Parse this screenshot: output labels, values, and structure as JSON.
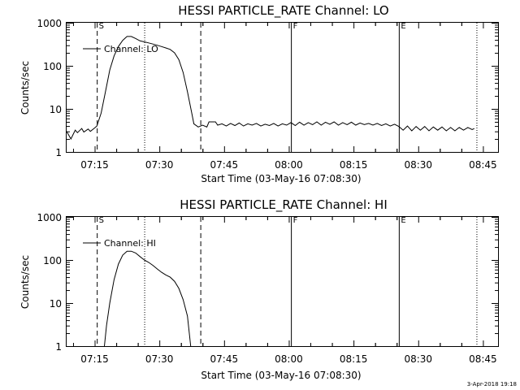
{
  "figure": {
    "footer_timestamp": "3-Apr-2018 19:18"
  },
  "chart_data": [
    {
      "type": "line",
      "title": "HESSI PARTICLE_RATE Channel: LO",
      "xlabel": "Start Time (03-May-16 07:08:30)",
      "ylabel": "Counts/sec",
      "y_scale": "log",
      "ylim": [
        1,
        1000
      ],
      "xlim": [
        "07:08:30",
        "08:48:30"
      ],
      "x_ticks": [
        "07:15",
        "07:30",
        "07:45",
        "08:00",
        "08:15",
        "08:30",
        "08:45"
      ],
      "y_ticks": [
        "1",
        "10",
        "100",
        "1000"
      ],
      "legend": {
        "placement": "top-left",
        "entries": [
          "Channel: LO"
        ]
      },
      "grid": false,
      "markers": [
        {
          "time": "07:15:30",
          "label": "S",
          "style": "dashed"
        },
        {
          "time": "07:26:30",
          "label": "",
          "style": "dotted"
        },
        {
          "time": "07:39:30",
          "label": "",
          "style": "dashed"
        },
        {
          "time": "08:00:30",
          "label": "F",
          "style": "solid"
        },
        {
          "time": "08:25:30",
          "label": "E",
          "style": "solid"
        },
        {
          "time": "08:43:30",
          "label": "",
          "style": "dotted"
        }
      ],
      "series": [
        {
          "name": "Channel: LO",
          "points": [
            [
              "07:08:30",
              3.0
            ],
            [
              "07:09:30",
              2.0
            ],
            [
              "07:10:30",
              3.2
            ],
            [
              "07:11:00",
              2.8
            ],
            [
              "07:12:00",
              3.5
            ],
            [
              "07:12:30",
              2.9
            ],
            [
              "07:13:30",
              3.4
            ],
            [
              "07:14:00",
              3.0
            ],
            [
              "07:15:00",
              3.6
            ],
            [
              "07:15:30",
              4.0
            ],
            [
              "07:16:30",
              8.0
            ],
            [
              "07:17:30",
              25
            ],
            [
              "07:18:30",
              80
            ],
            [
              "07:19:30",
              170
            ],
            [
              "07:20:30",
              280
            ],
            [
              "07:21:30",
              390
            ],
            [
              "07:22:30",
              480
            ],
            [
              "07:23:30",
              480
            ],
            [
              "07:24:30",
              430
            ],
            [
              "07:25:30",
              380
            ],
            [
              "07:26:30",
              360
            ],
            [
              "07:27:30",
              340
            ],
            [
              "07:28:30",
              320
            ],
            [
              "07:29:30",
              300
            ],
            [
              "07:30:30",
              280
            ],
            [
              "07:31:30",
              260
            ],
            [
              "07:32:30",
              240
            ],
            [
              "07:33:30",
              200
            ],
            [
              "07:34:30",
              140
            ],
            [
              "07:35:30",
              70
            ],
            [
              "07:36:30",
              25
            ],
            [
              "07:37:30",
              8.0
            ],
            [
              "07:38:00",
              4.5
            ],
            [
              "07:39:00",
              3.8
            ],
            [
              "07:40:00",
              4.2
            ],
            [
              "07:41:00",
              3.8
            ],
            [
              "07:41:30",
              5.0
            ],
            [
              "07:43:00",
              5.0
            ],
            [
              "07:43:30",
              4.2
            ],
            [
              "07:44:30",
              4.5
            ],
            [
              "07:45:30",
              4.0
            ],
            [
              "07:46:30",
              4.6
            ],
            [
              "07:47:30",
              4.1
            ],
            [
              "07:48:30",
              4.7
            ],
            [
              "07:49:30",
              4.0
            ],
            [
              "07:50:30",
              4.5
            ],
            [
              "07:51:30",
              4.2
            ],
            [
              "07:52:30",
              4.6
            ],
            [
              "07:53:30",
              4.0
            ],
            [
              "07:54:30",
              4.4
            ],
            [
              "07:55:30",
              4.1
            ],
            [
              "07:56:30",
              4.6
            ],
            [
              "07:57:30",
              4.0
            ],
            [
              "07:58:30",
              4.5
            ],
            [
              "07:59:30",
              4.2
            ],
            [
              "08:00:30",
              4.8
            ],
            [
              "08:01:30",
              4.1
            ],
            [
              "08:02:30",
              4.9
            ],
            [
              "08:03:30",
              4.2
            ],
            [
              "08:04:30",
              4.8
            ],
            [
              "08:05:30",
              4.3
            ],
            [
              "08:06:30",
              5.0
            ],
            [
              "08:07:30",
              4.2
            ],
            [
              "08:08:30",
              4.9
            ],
            [
              "08:09:30",
              4.4
            ],
            [
              "08:10:30",
              5.0
            ],
            [
              "08:11:30",
              4.2
            ],
            [
              "08:12:30",
              4.8
            ],
            [
              "08:13:30",
              4.3
            ],
            [
              "08:14:30",
              4.9
            ],
            [
              "08:15:30",
              4.2
            ],
            [
              "08:16:30",
              4.7
            ],
            [
              "08:17:30",
              4.3
            ],
            [
              "08:18:30",
              4.6
            ],
            [
              "08:19:30",
              4.2
            ],
            [
              "08:20:30",
              4.6
            ],
            [
              "08:21:30",
              4.1
            ],
            [
              "08:22:30",
              4.5
            ],
            [
              "08:23:30",
              4.0
            ],
            [
              "08:24:30",
              4.4
            ],
            [
              "08:25:30",
              3.9
            ],
            [
              "08:26:30",
              3.2
            ],
            [
              "08:27:30",
              4.0
            ],
            [
              "08:28:30",
              3.1
            ],
            [
              "08:29:30",
              3.9
            ],
            [
              "08:30:30",
              3.2
            ],
            [
              "08:31:30",
              3.9
            ],
            [
              "08:32:30",
              3.1
            ],
            [
              "08:33:30",
              3.8
            ],
            [
              "08:34:30",
              3.2
            ],
            [
              "08:35:30",
              3.8
            ],
            [
              "08:36:30",
              3.1
            ],
            [
              "08:37:30",
              3.7
            ],
            [
              "08:38:30",
              3.1
            ],
            [
              "08:39:30",
              3.7
            ],
            [
              "08:40:30",
              3.2
            ],
            [
              "08:41:30",
              3.7
            ],
            [
              "08:42:30",
              3.3
            ],
            [
              "08:43:00",
              3.5
            ]
          ]
        }
      ]
    },
    {
      "type": "line",
      "title": "HESSI PARTICLE_RATE Channel: HI",
      "xlabel": "Start Time (03-May-16 07:08:30)",
      "ylabel": "Counts/sec",
      "y_scale": "log",
      "ylim": [
        1,
        1000
      ],
      "xlim": [
        "07:08:30",
        "08:48:30"
      ],
      "x_ticks": [
        "07:15",
        "07:30",
        "07:45",
        "08:00",
        "08:15",
        "08:30",
        "08:45"
      ],
      "y_ticks": [
        "1",
        "10",
        "100",
        "1000"
      ],
      "legend": {
        "placement": "top-left",
        "entries": [
          "Channel: HI"
        ]
      },
      "grid": false,
      "markers": [
        {
          "time": "07:15:30",
          "label": "S",
          "style": "dashed"
        },
        {
          "time": "07:26:30",
          "label": "",
          "style": "dotted"
        },
        {
          "time": "07:39:30",
          "label": "",
          "style": "dashed"
        },
        {
          "time": "08:00:30",
          "label": "F",
          "style": "solid"
        },
        {
          "time": "08:25:30",
          "label": "E",
          "style": "solid"
        },
        {
          "time": "08:43:30",
          "label": "",
          "style": "dotted"
        }
      ],
      "series": [
        {
          "name": "Channel: HI",
          "points": [
            [
              "07:17:15",
              1.0
            ],
            [
              "07:17:45",
              3.0
            ],
            [
              "07:18:30",
              10
            ],
            [
              "07:19:30",
              35
            ],
            [
              "07:20:30",
              80
            ],
            [
              "07:21:30",
              130
            ],
            [
              "07:22:30",
              160
            ],
            [
              "07:23:30",
              160
            ],
            [
              "07:24:30",
              145
            ],
            [
              "07:25:30",
              120
            ],
            [
              "07:26:30",
              100
            ],
            [
              "07:27:30",
              88
            ],
            [
              "07:28:30",
              75
            ],
            [
              "07:29:30",
              62
            ],
            [
              "07:30:30",
              52
            ],
            [
              "07:31:30",
              45
            ],
            [
              "07:32:30",
              40
            ],
            [
              "07:33:30",
              32
            ],
            [
              "07:34:30",
              22
            ],
            [
              "07:35:30",
              12
            ],
            [
              "07:36:30",
              5.0
            ],
            [
              "07:37:15",
              1.0
            ]
          ]
        }
      ]
    }
  ]
}
